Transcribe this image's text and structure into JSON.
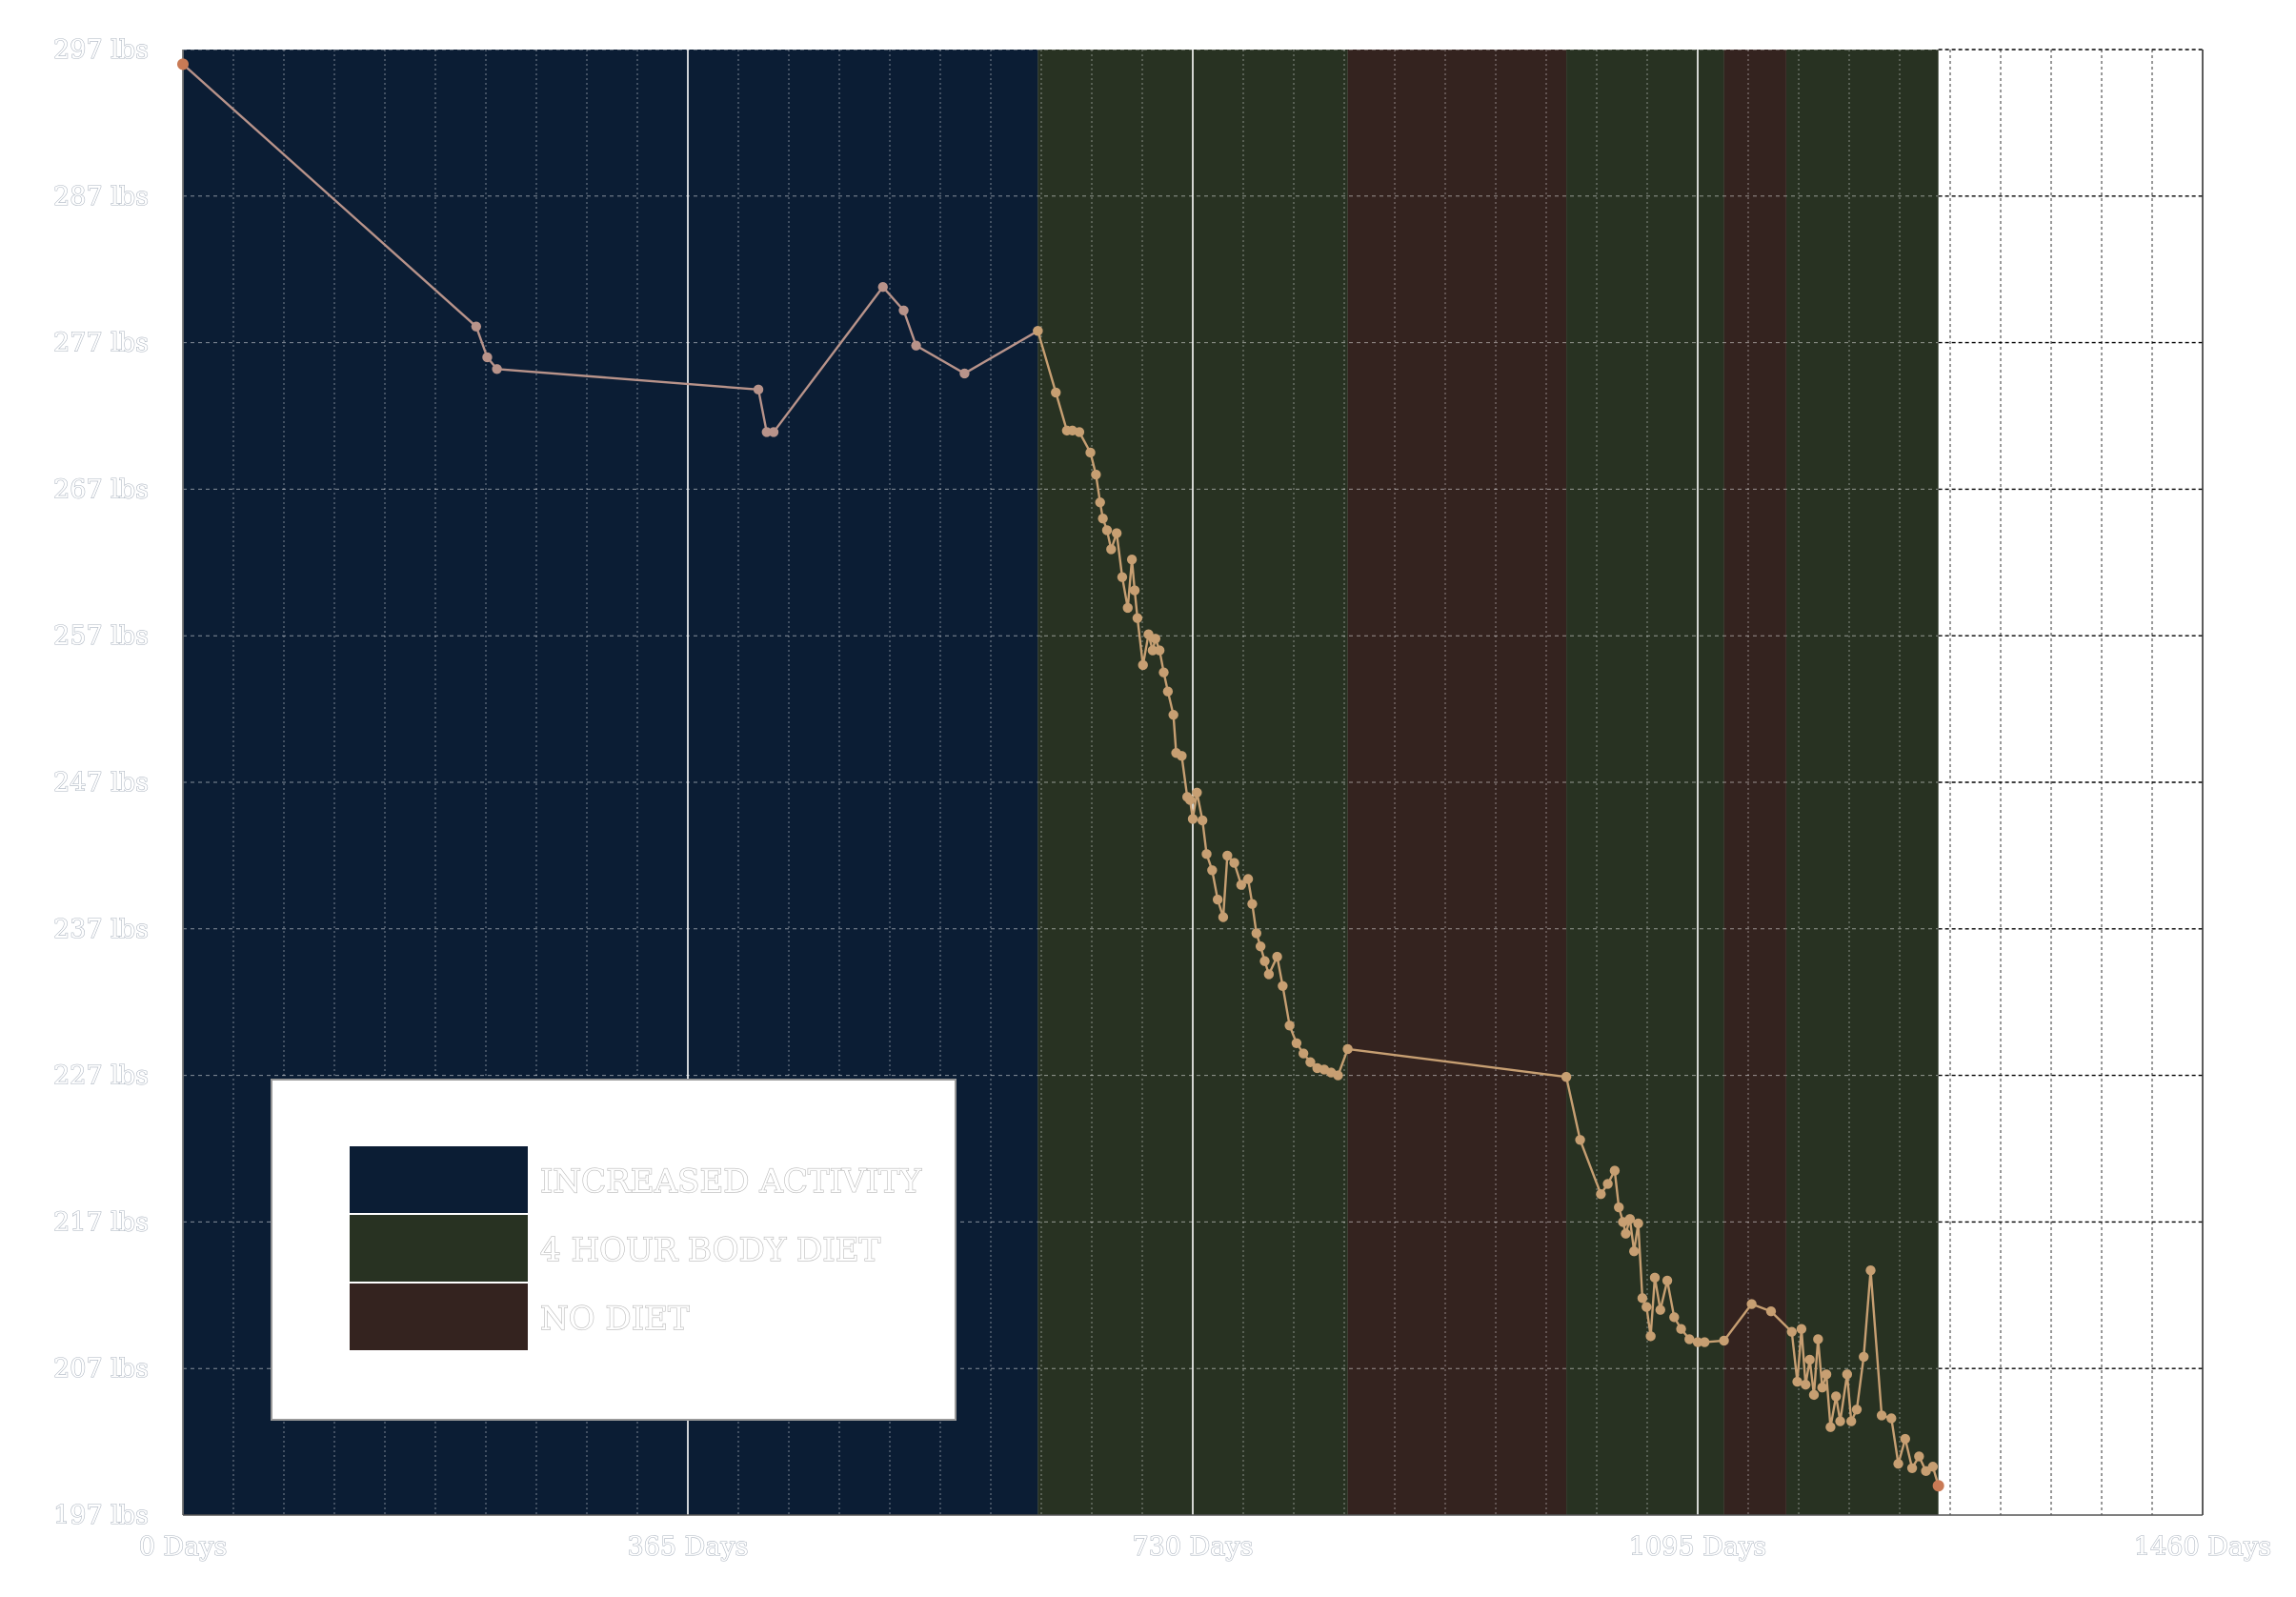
{
  "chart_data": {
    "type": "line",
    "xlabel": "",
    "ylabel": "",
    "xlim": [
      0,
      1460
    ],
    "ylim": [
      197,
      297
    ],
    "x_ticks": [
      0,
      365,
      730,
      1095,
      1460
    ],
    "x_tick_labels": [
      "0 Days",
      "365 Days",
      "730 Days",
      "1095 Days",
      "1460 Days"
    ],
    "y_ticks": [
      197,
      207,
      217,
      227,
      237,
      247,
      257,
      267,
      277,
      287,
      297
    ],
    "y_tick_labels": [
      "197 lbs",
      "207 lbs",
      "217 lbs",
      "227 lbs",
      "237 lbs",
      "247 lbs",
      "257 lbs",
      "267 lbs",
      "277 lbs",
      "287 lbs",
      "297 lbs"
    ],
    "grid": true,
    "legend_position": "bottom-left",
    "legend": [
      {
        "label": "INCREASED ACTIVITY",
        "color": "#0b1d34"
      },
      {
        "label": "4 HOUR BODY DIET",
        "color": "#283222"
      },
      {
        "label": "NO DIET",
        "color": "#34231f"
      }
    ],
    "regions": [
      {
        "category": "INCREASED ACTIVITY",
        "x_start": 0,
        "x_end": 618,
        "color": "#0b1d34"
      },
      {
        "category": "4 HOUR BODY DIET",
        "x_start": 618,
        "x_end": 842,
        "color": "#283222"
      },
      {
        "category": "NO DIET",
        "x_start": 842,
        "x_end": 1000,
        "color": "#34231f"
      },
      {
        "category": "4 HOUR BODY DIET",
        "x_start": 1000,
        "x_end": 1114,
        "color": "#283222"
      },
      {
        "category": "NO DIET",
        "x_start": 1114,
        "x_end": 1159,
        "color": "#34231f"
      },
      {
        "category": "4 HOUR BODY DIET",
        "x_start": 1159,
        "x_end": 1269,
        "color": "#283222"
      }
    ],
    "series": [
      {
        "color": "#b8938a",
        "x": [
          0,
          212,
          220,
          227,
          416,
          422,
          427,
          506,
          521,
          530,
          565,
          618
        ],
        "y": [
          296,
          278.1,
          276.0,
          275.2,
          273.8,
          270.9,
          270.9,
          280.8,
          279.2,
          276.8,
          274.9,
          277.8
        ]
      },
      {
        "color": "#c79f72",
        "x": [
          618,
          631,
          639,
          643,
          648,
          656,
          660,
          663,
          665,
          668,
          671,
          675,
          679,
          683,
          686,
          688,
          690,
          694,
          698,
          701,
          703,
          706,
          709,
          712,
          716,
          718,
          722,
          726,
          728,
          730,
          733,
          737,
          740,
          744,
          748,
          752,
          755,
          760,
          765,
          770,
          773,
          776,
          779,
          782,
          785,
          791,
          795,
          800,
          805,
          810,
          815,
          820,
          825,
          830,
          835,
          842,
          1000
        ],
        "y": [
          277.8,
          273.6,
          271.0,
          271.0,
          270.9,
          269.5,
          268.0,
          266.1,
          265.0,
          264.2,
          262.9,
          264.0,
          261.0,
          258.9,
          262.2,
          260.1,
          258.2,
          255.0,
          257.1,
          256.0,
          256.8,
          256.0,
          254.5,
          253.2,
          251.6,
          249.0,
          248.8,
          246.0,
          245.8,
          244.5,
          246.3,
          244.4,
          242.1,
          241.0,
          239.0,
          237.8,
          242.0,
          241.5,
          240.0,
          240.4,
          238.7,
          236.7,
          235.8,
          234.8,
          233.9,
          235.1,
          233.1,
          230.4,
          229.2,
          228.5,
          227.9,
          227.5,
          227.4,
          227.2,
          227.0,
          228.8,
          226.9
        ]
      },
      {
        "color": "#c79f72",
        "x": [
          1000,
          1010,
          1025,
          1030,
          1035,
          1038,
          1041,
          1043,
          1046,
          1049,
          1052,
          1055,
          1058,
          1061,
          1064,
          1068,
          1073,
          1078,
          1083,
          1089,
          1095,
          1100,
          1114,
          1134,
          1148,
          1163,
          1167,
          1170,
          1173,
          1176,
          1179,
          1182,
          1185,
          1188,
          1191,
          1195,
          1198,
          1203,
          1206,
          1210,
          1215,
          1220,
          1228,
          1235,
          1240,
          1245,
          1250,
          1255,
          1260,
          1265,
          1269
        ],
        "y": [
          226.9,
          222.6,
          218.9,
          219.6,
          220.5,
          218.0,
          217.0,
          216.2,
          217.2,
          215.0,
          216.9,
          211.8,
          211.2,
          209.2,
          213.2,
          211.0,
          213.0,
          210.5,
          209.7,
          209.0,
          208.8,
          208.8,
          208.9,
          211.4,
          210.9,
          209.5,
          206.1,
          209.7,
          205.9,
          207.6,
          205.2,
          209.0,
          205.7,
          206.6,
          203.0,
          205.1,
          203.4,
          206.6,
          203.4,
          204.2,
          207.8,
          213.7,
          203.8,
          203.6,
          200.5,
          202.2,
          200.2,
          201.0,
          200.0,
          200.3,
          199.0
        ]
      }
    ]
  }
}
